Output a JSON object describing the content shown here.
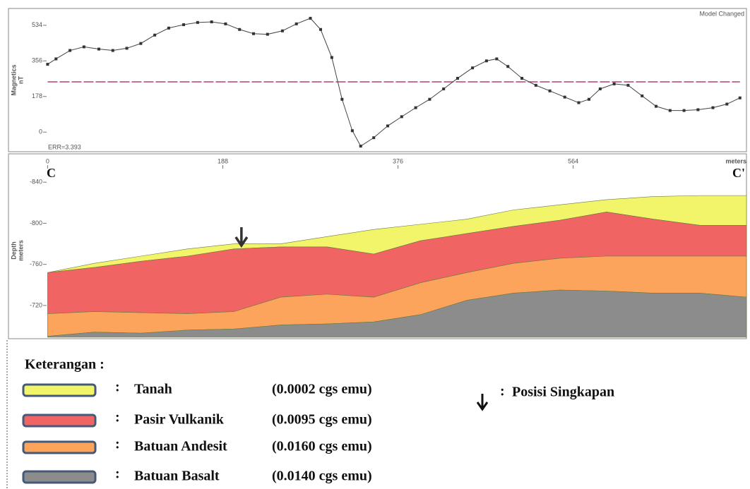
{
  "chart_data": [
    {
      "type": "line",
      "ylabel": "Magnetics",
      "yunit": "nT",
      "note": "Model Changed",
      "error_label": "ERR=3.393",
      "xlim": [
        -42,
        750
      ],
      "ylim": [
        -98,
        618
      ],
      "yticks": [
        0,
        178,
        356,
        534
      ],
      "color": "#444444",
      "marker_color": "#333333",
      "reference": {
        "value": 251,
        "color": "#b0407a"
      },
      "x": [
        0,
        9,
        24,
        39,
        55,
        70,
        85,
        100,
        115,
        130,
        146,
        161,
        176,
        191,
        206,
        221,
        236,
        252,
        267,
        282,
        293,
        305,
        316,
        327,
        336,
        350,
        365,
        380,
        395,
        410,
        425,
        440,
        456,
        471,
        482,
        494,
        509,
        524,
        539,
        555,
        570,
        581,
        593,
        608,
        623,
        638,
        653,
        668,
        683,
        698,
        714,
        729,
        743
      ],
      "values": [
        339,
        366,
        408,
        426,
        415,
        408,
        419,
        443,
        485,
        520,
        537,
        548,
        551,
        541,
        513,
        492,
        489,
        506,
        541,
        569,
        513,
        373,
        164,
        7,
        -70,
        -28,
        31,
        77,
        122,
        164,
        216,
        269,
        321,
        356,
        366,
        328,
        269,
        234,
        206,
        175,
        147,
        164,
        216,
        241,
        234,
        181,
        129,
        108,
        108,
        112,
        122,
        140,
        171
      ]
    },
    {
      "type": "area",
      "ylabel": "Depth",
      "yunit": "meters",
      "xlabel": "meters",
      "start_label": "C",
      "end_label": "C'",
      "xlim": [
        -42,
        750
      ],
      "xticks": [
        0,
        188,
        376,
        564
      ],
      "ylim": [
        -858,
        -689
      ],
      "yticks": [
        -840,
        -800,
        -760,
        -720
      ],
      "x": [
        0,
        50,
        100,
        150,
        200,
        250,
        300,
        350,
        400,
        450,
        500,
        550,
        600,
        650,
        700,
        750
      ],
      "layers": [
        {
          "name": "Tanah",
          "label": "(0.0002 cgs emu)",
          "color": "#f2f56a",
          "values": [
            -752,
            -761,
            -768,
            -775,
            -780,
            -780,
            -787,
            -794,
            -799,
            -804,
            -813,
            -818,
            -823,
            -826,
            -827,
            -827
          ]
        },
        {
          "name": "Pasir Vulkanik",
          "label": "(0.0095 cgs emu)",
          "color": "#f06464",
          "values": [
            -752,
            -757,
            -763,
            -768,
            -775,
            -777,
            -777,
            -770,
            -783,
            -790,
            -797,
            -803,
            -811,
            -804,
            -798,
            -798
          ]
        },
        {
          "name": "Batuan Andesit",
          "label": "(0.0160 cgs emu)",
          "color": "#fca45c",
          "values": [
            -712,
            -714,
            -713,
            -712,
            -714,
            -728,
            -731,
            -728,
            -742,
            -752,
            -761,
            -766,
            -768,
            -768,
            -768,
            -768
          ]
        },
        {
          "name": "Batuan Basalt",
          "label": "(0.0140 cgs emu)",
          "color": "#8c8c8c",
          "values": [
            -690,
            -694,
            -693,
            -696,
            -697,
            -701,
            -702,
            -704,
            -711,
            -725,
            -732,
            -735,
            -734,
            -732,
            -732,
            -728
          ]
        }
      ],
      "outcrop_x": 208,
      "outcrop_label": "Posisi Singkapan",
      "legend_title": "Keterangan :",
      "separator": ":"
    }
  ]
}
